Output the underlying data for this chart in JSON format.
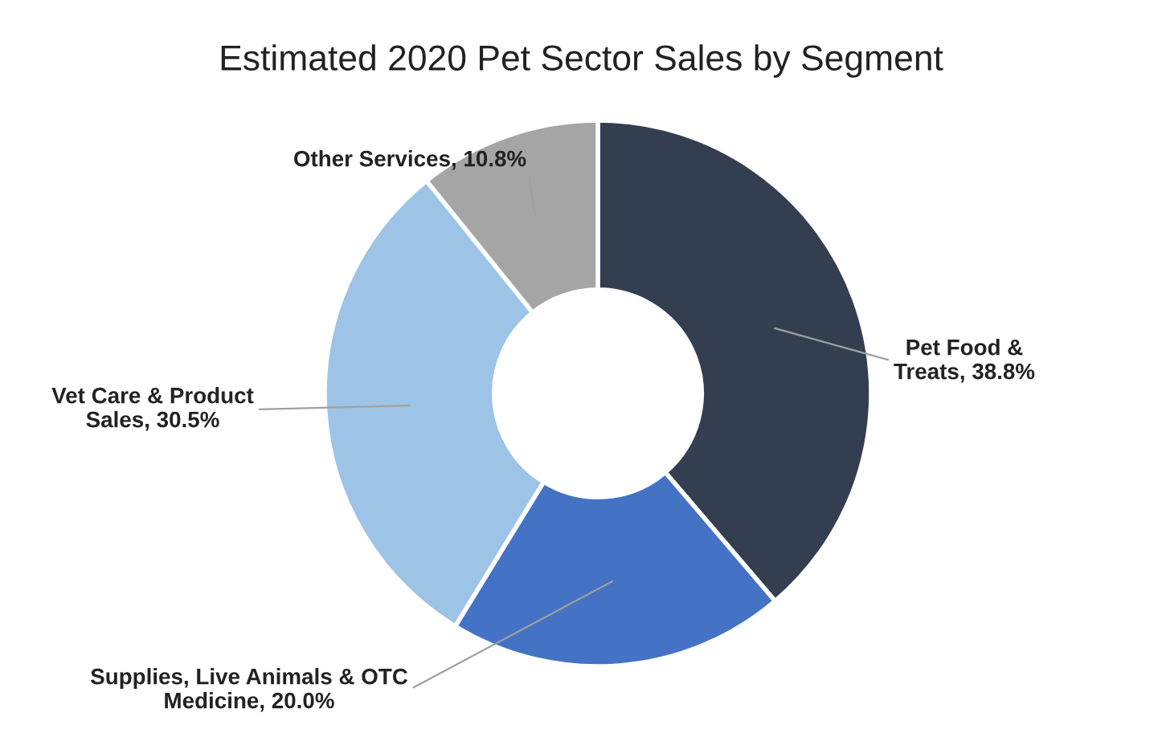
{
  "chart_data": {
    "type": "donut",
    "title": "Estimated 2020 Pet Sector Sales by Segment",
    "categories": [
      "Pet Food & Treats",
      "Supplies, Live Animals & OTC Medicine",
      "Vet Care & Product Sales",
      "Other Services"
    ],
    "values": [
      38.8,
      20.0,
      30.5,
      10.8
    ],
    "value_labels": [
      "38.8%",
      "20.0%",
      "30.5%",
      "10.8%"
    ],
    "colors": [
      "#333f50",
      "#4472c4",
      "#9dc3e6",
      "#a5a5a5"
    ],
    "legend": false
  }
}
